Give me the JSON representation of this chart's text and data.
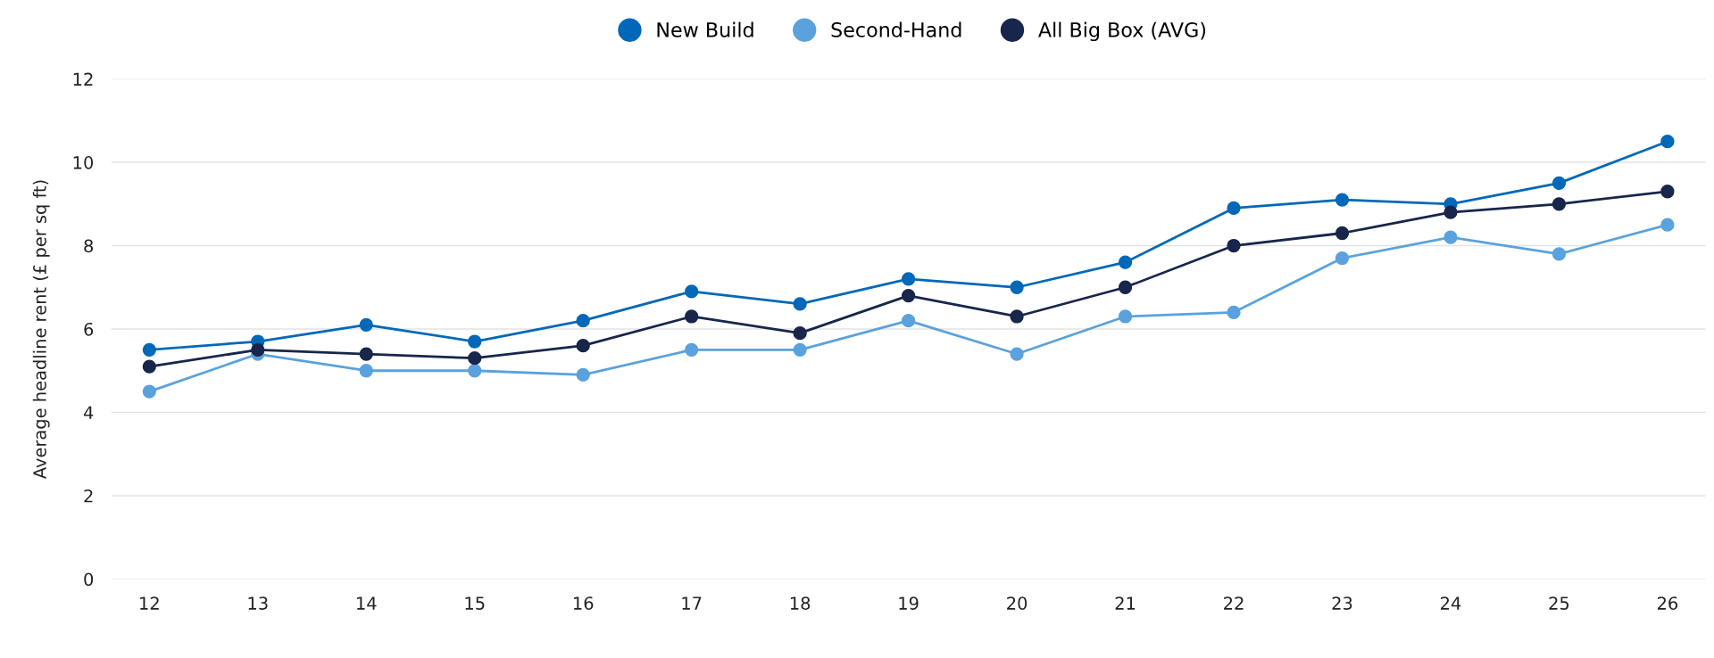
{
  "chart_data": {
    "type": "line",
    "ylabel": "Average headline rent (£ per sq ft)",
    "categories": [
      "12",
      "13",
      "14",
      "15",
      "16",
      "17",
      "18",
      "19",
      "20",
      "21",
      "22",
      "23",
      "24",
      "25",
      "26"
    ],
    "series": [
      {
        "name": "New Build",
        "color": "#0068b8",
        "values": [
          5.5,
          5.7,
          6.1,
          5.7,
          6.2,
          6.9,
          6.6,
          7.2,
          7.0,
          7.6,
          8.9,
          9.1,
          9.0,
          9.5,
          10.5
        ]
      },
      {
        "name": "Second-Hand",
        "color": "#5aa2dd",
        "values": [
          4.5,
          5.4,
          5.0,
          5.0,
          4.9,
          5.5,
          5.5,
          6.2,
          5.4,
          6.3,
          6.4,
          7.7,
          8.2,
          7.8,
          8.5
        ]
      },
      {
        "name": "All Big Box (AVG)",
        "color": "#17264a",
        "values": [
          5.1,
          5.5,
          5.4,
          5.3,
          5.6,
          6.3,
          5.9,
          6.8,
          6.3,
          7.0,
          8.0,
          8.3,
          8.8,
          9.0,
          9.3
        ]
      }
    ],
    "ylim": [
      0,
      12
    ],
    "yticks": [
      0,
      2,
      4,
      6,
      8,
      10,
      12
    ],
    "grid": "y",
    "legend": "top",
    "marker": "circle",
    "line_style": "solid"
  }
}
